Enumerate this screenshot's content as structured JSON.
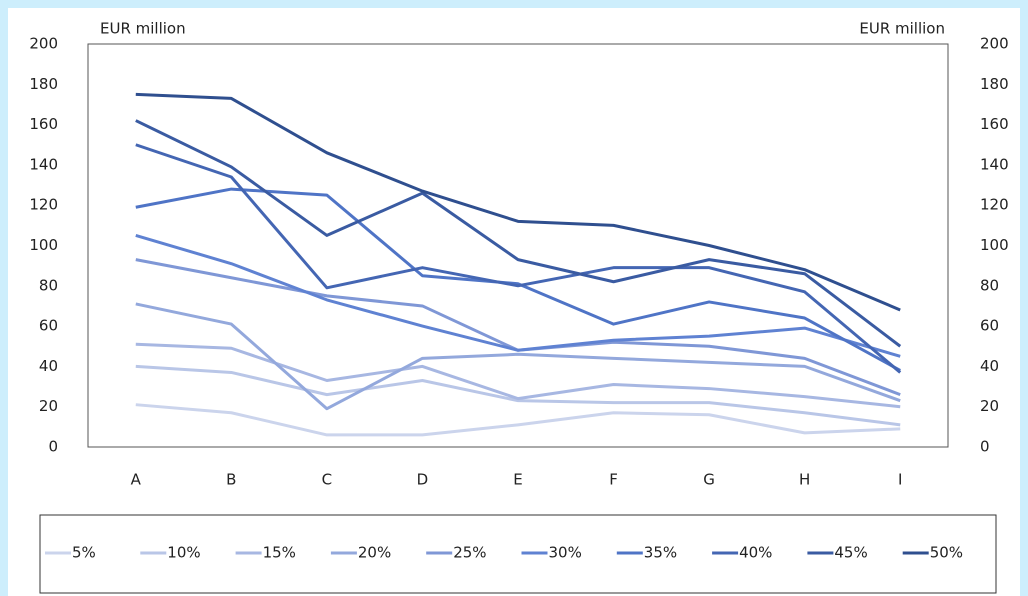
{
  "chart_data": {
    "type": "line",
    "y_label": "EUR million",
    "y2_label": "EUR million",
    "categories": [
      "A",
      "B",
      "C",
      "D",
      "E",
      "F",
      "G",
      "H",
      "I"
    ],
    "series": [
      {
        "name": "5%",
        "color": "#cbd4ec",
        "values": [
          21,
          17,
          6,
          6,
          11,
          17,
          16,
          7,
          9
        ]
      },
      {
        "name": "10%",
        "color": "#b9c6e7",
        "values": [
          40,
          37,
          26,
          33,
          23,
          22,
          22,
          17,
          11
        ]
      },
      {
        "name": "15%",
        "color": "#a7b7e2",
        "values": [
          51,
          49,
          33,
          40,
          24,
          31,
          29,
          25,
          20
        ]
      },
      {
        "name": "20%",
        "color": "#93a8dc",
        "values": [
          71,
          61,
          19,
          44,
          46,
          44,
          42,
          40,
          23
        ]
      },
      {
        "name": "25%",
        "color": "#7f97d6",
        "values": [
          93,
          84,
          75,
          70,
          48,
          52,
          50,
          44,
          26
        ]
      },
      {
        "name": "30%",
        "color": "#5f82d2",
        "values": [
          105,
          91,
          73,
          60,
          48,
          53,
          55,
          59,
          45
        ]
      },
      {
        "name": "35%",
        "color": "#4f74c6",
        "values": [
          119,
          128,
          125,
          85,
          81,
          61,
          72,
          64,
          38
        ]
      },
      {
        "name": "40%",
        "color": "#4466b3",
        "values": [
          150,
          134,
          79,
          89,
          80,
          89,
          89,
          77,
          37
        ]
      },
      {
        "name": "45%",
        "color": "#3a5ba2",
        "values": [
          162,
          139,
          105,
          126,
          93,
          82,
          93,
          86,
          50
        ]
      },
      {
        "name": "50%",
        "color": "#2f4f8f",
        "values": [
          175,
          173,
          146,
          127,
          112,
          110,
          100,
          88,
          68
        ]
      }
    ],
    "ylim": [
      0,
      200
    ],
    "yticks": [
      0,
      20,
      40,
      60,
      80,
      100,
      120,
      140,
      160,
      180,
      200
    ],
    "y2lim": [
      0,
      200
    ],
    "y2ticks": [
      0,
      20,
      40,
      60,
      80,
      100,
      120,
      140,
      160,
      180,
      200
    ],
    "grid": false,
    "legend": "bottom"
  }
}
